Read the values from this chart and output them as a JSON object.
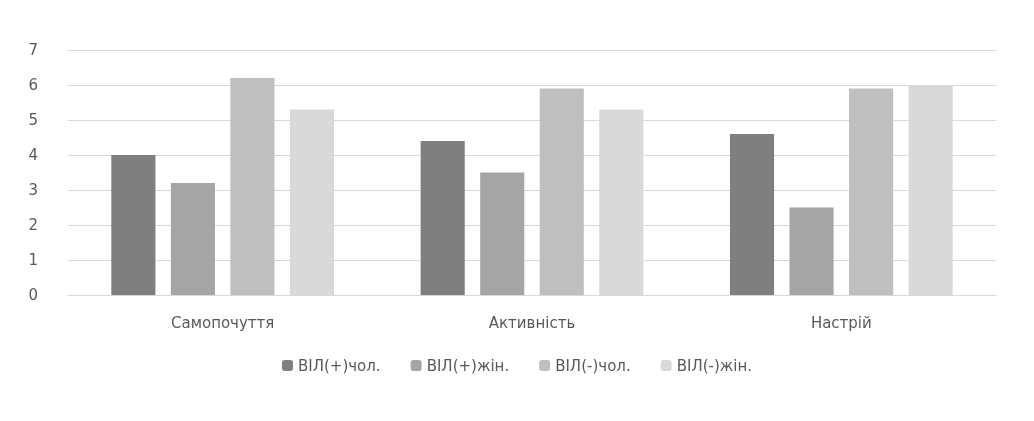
{
  "chart_data": {
    "type": "bar",
    "categories": [
      "Самопочуття",
      "Активність",
      "Настрій"
    ],
    "series": [
      {
        "name": "ВІЛ(+)чол.",
        "color": "#7f7f7f",
        "values": [
          4.0,
          4.4,
          4.6
        ]
      },
      {
        "name": "ВІЛ(+)жін.",
        "color": "#a5a5a5",
        "values": [
          3.2,
          3.5,
          2.5
        ]
      },
      {
        "name": "ВІЛ(-)чол.",
        "color": "#bfbfbf",
        "values": [
          6.2,
          5.9,
          5.9
        ]
      },
      {
        "name": "ВІЛ(-)жін.",
        "color": "#d9d9d9",
        "values": [
          5.3,
          5.3,
          6.0
        ]
      }
    ],
    "ylim": [
      0,
      7
    ],
    "yticks": [
      0,
      1,
      2,
      3,
      4,
      5,
      6,
      7
    ],
    "grid": "y",
    "legend": "bottom"
  }
}
